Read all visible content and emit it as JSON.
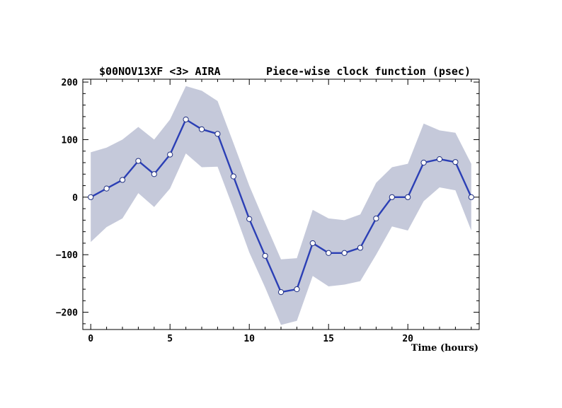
{
  "chart_data": {
    "type": "line",
    "title_left": "$00NOV13XF <3>  AIRA",
    "title_right": "Piece-wise clock function (psec)",
    "xlabel": "Time (hours)",
    "ylabel": "",
    "xlim": [
      -0.5,
      24.5
    ],
    "ylim": [
      -230,
      205
    ],
    "x_ticks": [
      0,
      5,
      10,
      15,
      20
    ],
    "y_ticks": [
      -200,
      -100,
      0,
      100,
      200
    ],
    "grid": false,
    "series": [
      {
        "name": "",
        "color": "#2b3fb5",
        "x": [
          0,
          1,
          2,
          3,
          4,
          5,
          6,
          7,
          8,
          9,
          10,
          11,
          12,
          13,
          14,
          15,
          16,
          17,
          18,
          19,
          20,
          21,
          22,
          23,
          24
        ],
        "y": [
          0,
          15,
          30,
          63,
          40,
          74,
          135,
          118,
          110,
          36,
          -38,
          -102,
          -165,
          -160,
          -80,
          -97,
          -97,
          -88,
          -37,
          0,
          0,
          60,
          66,
          61,
          0
        ],
        "band_upper": [
          78,
          86,
          100,
          122,
          100,
          135,
          193,
          185,
          167,
          94,
          20,
          -45,
          -108,
          -106,
          -22,
          -37,
          -40,
          -30,
          25,
          52,
          58,
          128,
          116,
          112,
          58
        ],
        "band_lower": [
          -78,
          -52,
          -37,
          7,
          -17,
          15,
          76,
          52,
          53,
          -20,
          -96,
          -157,
          -222,
          -215,
          -137,
          -155,
          -152,
          -146,
          -100,
          -51,
          -58,
          -7,
          17,
          12,
          -58
        ]
      }
    ],
    "band_color": "#c5c9da",
    "marker": "open-circle"
  }
}
